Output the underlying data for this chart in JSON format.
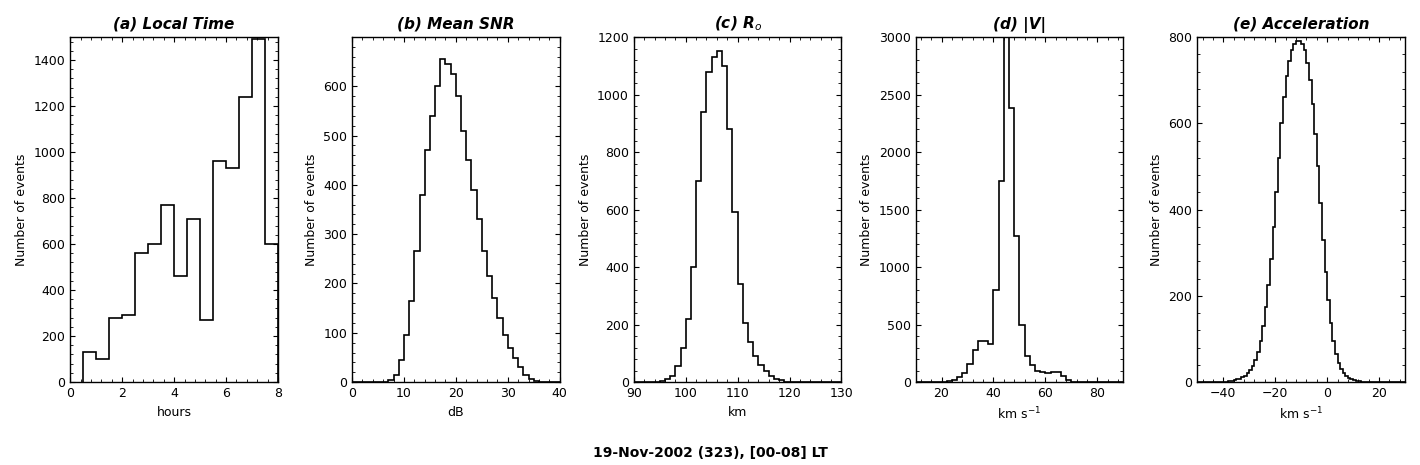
{
  "panels": [
    {
      "label": "(a) Local Time",
      "xlabel": "hours",
      "ylabel": "Number of events",
      "xlim": [
        0,
        8
      ],
      "ylim": [
        0,
        1500
      ],
      "yticks": [
        0,
        200,
        400,
        600,
        800,
        1000,
        1200,
        1400
      ],
      "xticks": [
        0,
        2,
        4,
        6,
        8
      ],
      "bin_edges": [
        0.5,
        1.0,
        1.5,
        2.0,
        2.5,
        3.0,
        3.5,
        4.0,
        4.5,
        5.0,
        5.5,
        6.0,
        6.5,
        7.0,
        7.5,
        8.0
      ],
      "bin_values": [
        130,
        100,
        280,
        290,
        560,
        600,
        770,
        460,
        710,
        270,
        960,
        930,
        1240,
        1490,
        600
      ]
    },
    {
      "label": "(b) Mean SNR",
      "xlabel": "dB",
      "ylabel": "Number of events",
      "xlim": [
        0,
        40
      ],
      "ylim": [
        0,
        700
      ],
      "yticks": [
        0,
        100,
        200,
        300,
        400,
        500,
        600
      ],
      "xticks": [
        0,
        10,
        20,
        30,
        40
      ],
      "bin_edges": [
        0,
        1,
        2,
        3,
        4,
        5,
        6,
        7,
        8,
        9,
        10,
        11,
        12,
        13,
        14,
        15,
        16,
        17,
        18,
        19,
        20,
        21,
        22,
        23,
        24,
        25,
        26,
        27,
        28,
        29,
        30,
        31,
        32,
        33,
        34,
        35,
        36,
        37,
        38,
        39,
        40
      ],
      "bin_values": [
        0,
        0,
        0,
        0,
        0,
        0,
        0,
        5,
        15,
        45,
        95,
        165,
        265,
        380,
        470,
        540,
        600,
        655,
        645,
        625,
        580,
        510,
        450,
        390,
        330,
        265,
        215,
        170,
        130,
        95,
        70,
        48,
        30,
        15,
        6,
        2,
        0,
        0,
        0,
        0
      ]
    },
    {
      "label": "(c) R$_o$",
      "xlabel": "km",
      "ylabel": "Number of events",
      "xlim": [
        90,
        130
      ],
      "ylim": [
        0,
        1200
      ],
      "yticks": [
        0,
        200,
        400,
        600,
        800,
        1000,
        1200
      ],
      "xticks": [
        90,
        100,
        110,
        120,
        130
      ],
      "bin_edges": [
        90,
        91,
        92,
        93,
        94,
        95,
        96,
        97,
        98,
        99,
        100,
        101,
        102,
        103,
        104,
        105,
        106,
        107,
        108,
        109,
        110,
        111,
        112,
        113,
        114,
        115,
        116,
        117,
        118,
        119,
        120,
        121,
        122,
        123,
        124,
        125,
        126,
        127,
        128,
        129,
        130
      ],
      "bin_values": [
        0,
        0,
        0,
        0,
        0,
        5,
        10,
        20,
        55,
        120,
        220,
        400,
        700,
        940,
        1080,
        1130,
        1150,
        1100,
        880,
        590,
        340,
        205,
        140,
        90,
        60,
        38,
        22,
        12,
        6,
        2,
        1,
        0,
        0,
        0,
        0,
        0,
        0,
        0,
        0,
        0
      ]
    },
    {
      "label": "(d) |V|",
      "xlabel": "km s$^{-1}$",
      "ylabel": "Number of events",
      "xlim": [
        10,
        90
      ],
      "ylim": [
        0,
        3000
      ],
      "yticks": [
        0,
        500,
        1000,
        1500,
        2000,
        2500,
        3000
      ],
      "xticks": [
        20,
        40,
        60,
        80
      ],
      "bin_edges": [
        10,
        12,
        14,
        16,
        18,
        20,
        22,
        24,
        26,
        28,
        30,
        32,
        34,
        36,
        38,
        40,
        42,
        44,
        46,
        48,
        50,
        52,
        54,
        56,
        58,
        60,
        62,
        64,
        66,
        68,
        70,
        72,
        74,
        76,
        78,
        80,
        82,
        84,
        86,
        88,
        90
      ],
      "bin_values": [
        0,
        0,
        0,
        0,
        0,
        5,
        10,
        20,
        40,
        80,
        160,
        280,
        360,
        360,
        330,
        800,
        1750,
        3050,
        2380,
        1270,
        500,
        230,
        150,
        100,
        90,
        80,
        90,
        90,
        50,
        15,
        5,
        2,
        1,
        0,
        0,
        0,
        0,
        0,
        0,
        0
      ]
    },
    {
      "label": "(e) Acceleration",
      "xlabel": "km s$^{-1}$",
      "ylabel": "Number of events",
      "xlim": [
        -50,
        30
      ],
      "ylim": [
        0,
        800
      ],
      "yticks": [
        0,
        200,
        400,
        600,
        800
      ],
      "xticks": [
        -40,
        -20,
        0,
        20
      ],
      "bin_edges": [
        -50,
        -49,
        -48,
        -47,
        -46,
        -45,
        -44,
        -43,
        -42,
        -41,
        -40,
        -39,
        -38,
        -37,
        -36,
        -35,
        -34,
        -33,
        -32,
        -31,
        -30,
        -29,
        -28,
        -27,
        -26,
        -25,
        -24,
        -23,
        -22,
        -21,
        -20,
        -19,
        -18,
        -17,
        -16,
        -15,
        -14,
        -13,
        -12,
        -11,
        -10,
        -9,
        -8,
        -7,
        -6,
        -5,
        -4,
        -3,
        -2,
        -1,
        0,
        1,
        2,
        3,
        4,
        5,
        6,
        7,
        8,
        9,
        10,
        11,
        12,
        13,
        14,
        15,
        16,
        17,
        18,
        19,
        20,
        21,
        22,
        23,
        24,
        25,
        26,
        27,
        28,
        29,
        30
      ],
      "bin_values": [
        0,
        0,
        0,
        0,
        0,
        0,
        0,
        0,
        0,
        0,
        1,
        1,
        2,
        3,
        4,
        6,
        8,
        11,
        15,
        20,
        28,
        38,
        52,
        70,
        95,
        130,
        175,
        225,
        285,
        360,
        440,
        520,
        600,
        660,
        710,
        745,
        770,
        785,
        790,
        790,
        785,
        770,
        740,
        700,
        645,
        575,
        500,
        415,
        330,
        255,
        190,
        138,
        95,
        65,
        44,
        30,
        20,
        13,
        9,
        6,
        4,
        3,
        2,
        1,
        1,
        0,
        0,
        0,
        0,
        0,
        0,
        0,
        0,
        0,
        0,
        0,
        0,
        0,
        0,
        0
      ]
    }
  ],
  "footer": "19-Nov-2002 (323), [00-08] LT",
  "background_color": "#ffffff",
  "line_color": "#000000"
}
